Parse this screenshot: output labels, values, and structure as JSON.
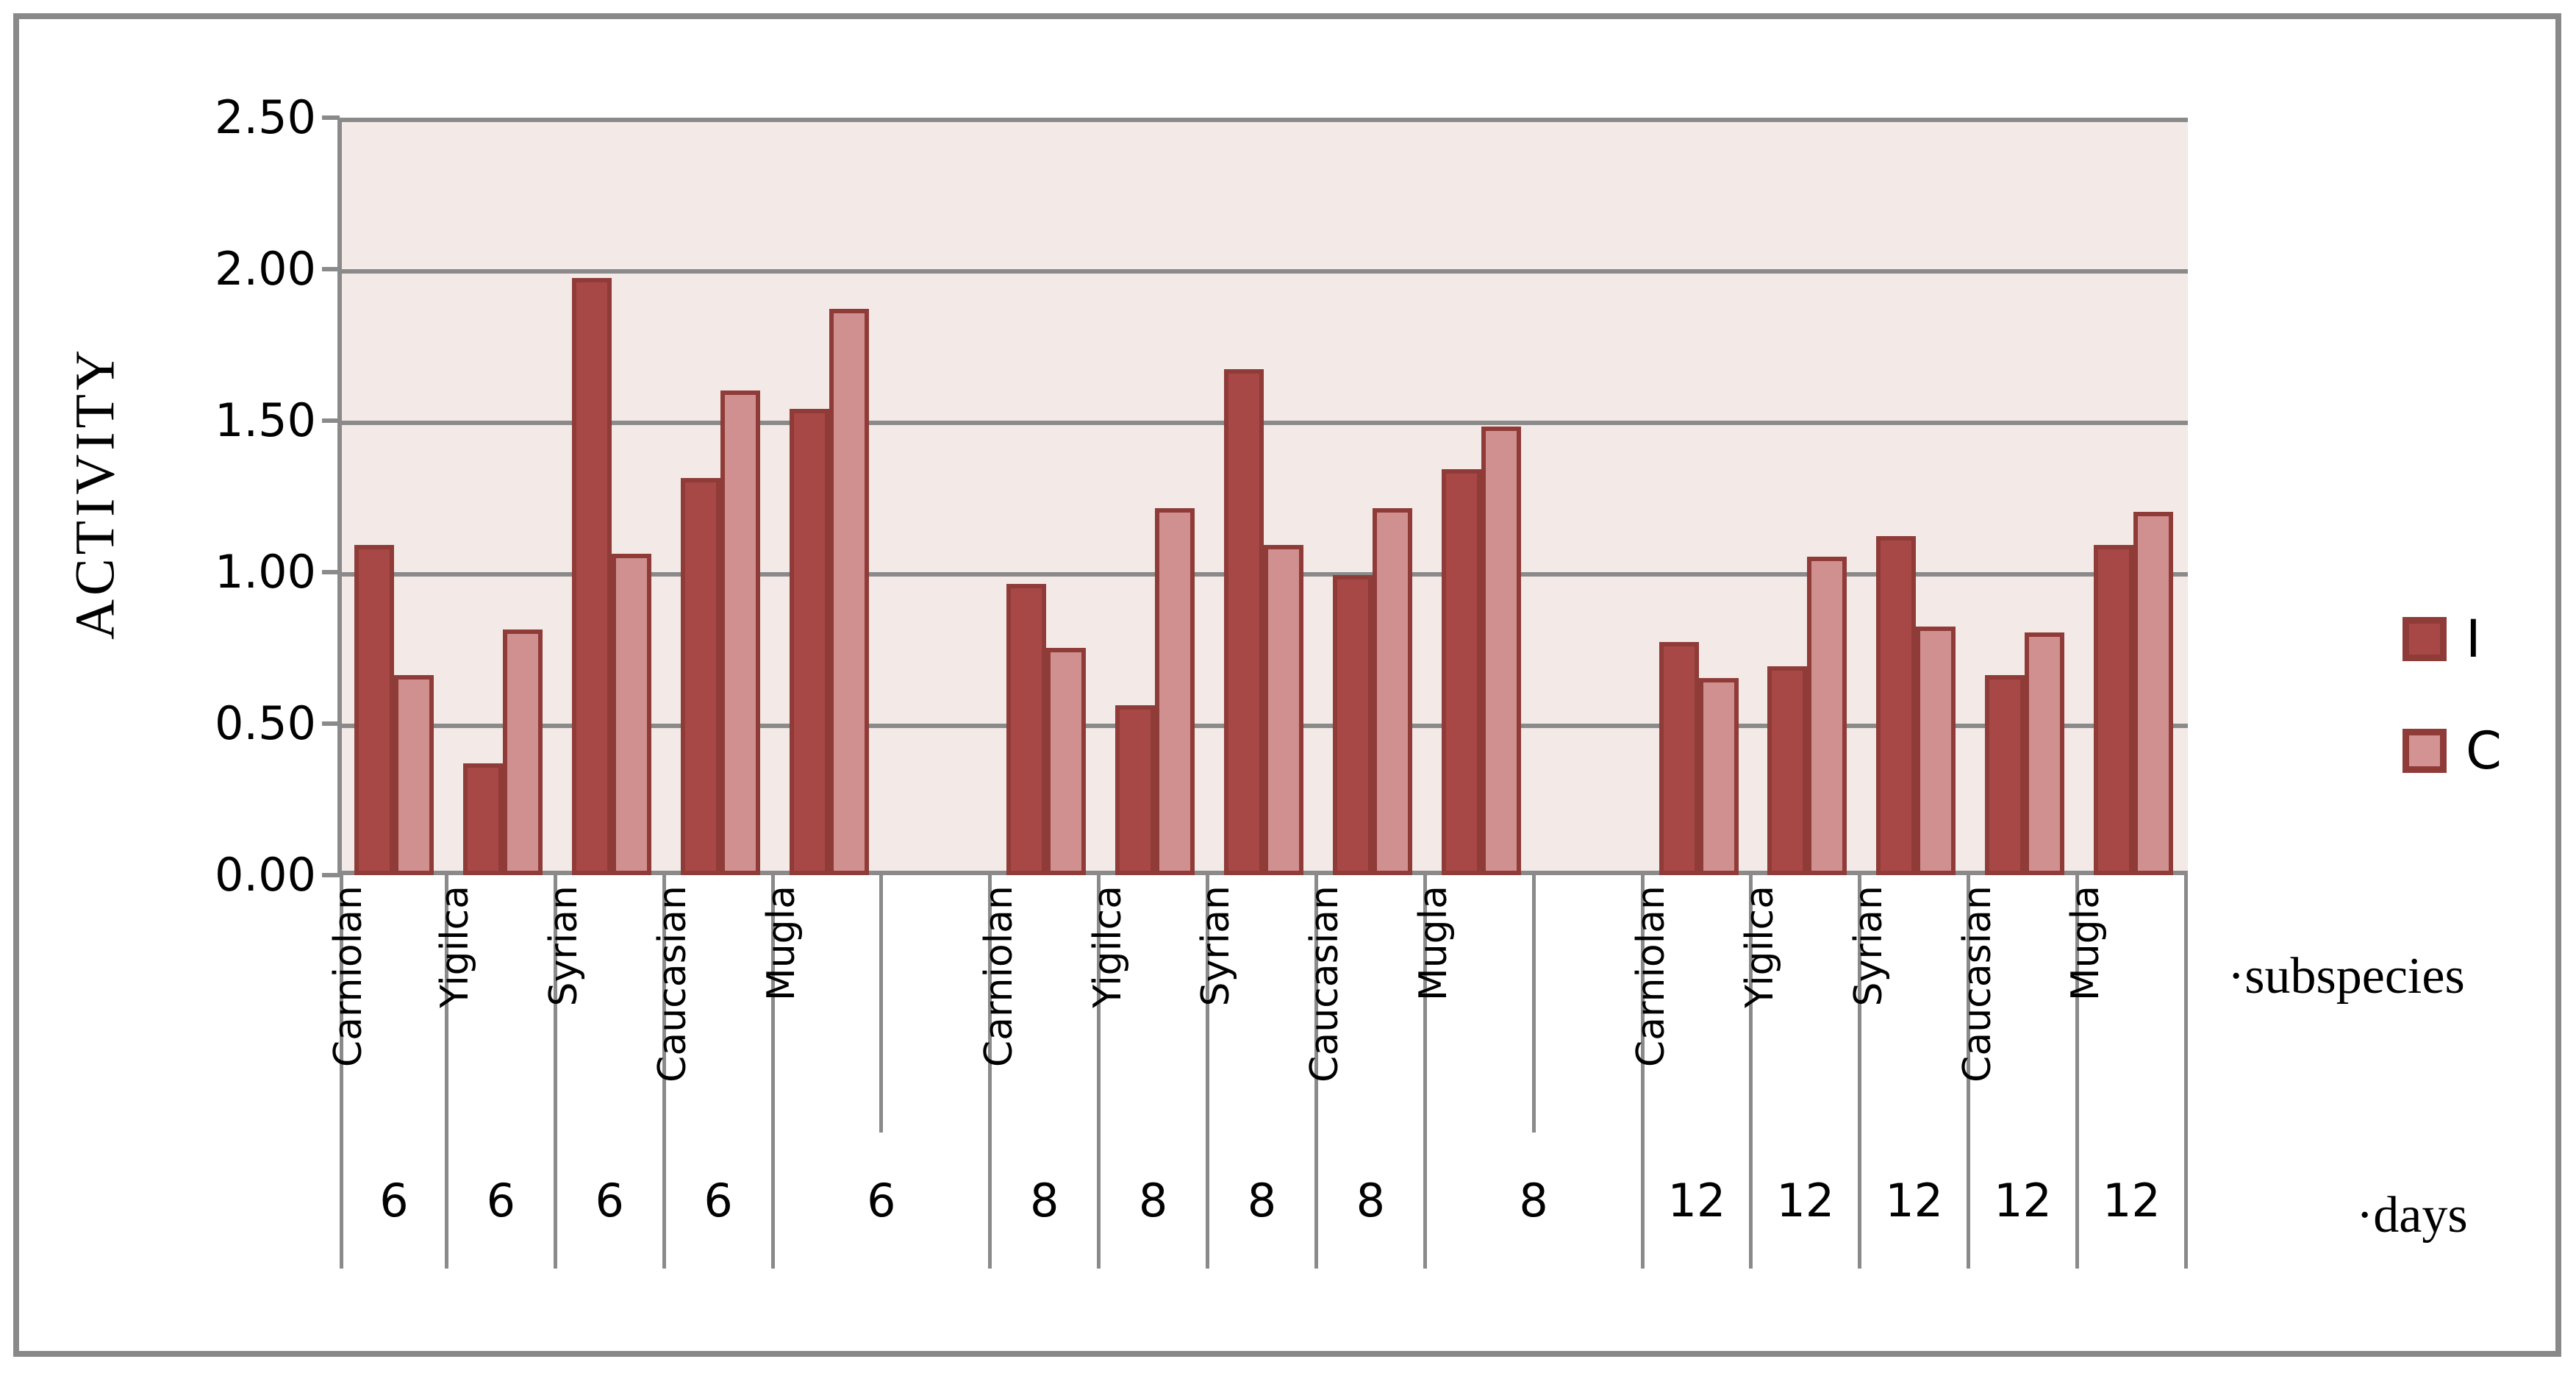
{
  "chart_data": {
    "type": "bar",
    "title": "",
    "ylabel": "ACTIVITY",
    "ylim": [
      0,
      2.5
    ],
    "ytick_step": 0.5,
    "ytick_labels": [
      "2.50",
      "2.00",
      "1.50",
      "1.00",
      "0.50",
      "0.00"
    ],
    "grid": true,
    "legend_position": "right",
    "series_names": [
      "I",
      "C"
    ],
    "x_level_1_name": "subspecies",
    "x_level_2_name": "days",
    "groups": [
      {
        "days": "6",
        "categories": [
          "Carniolan",
          "Yigilca",
          "Syrian",
          "Caucasian",
          "Mugla"
        ],
        "series": [
          {
            "name": "I",
            "values": [
              1.09,
              0.37,
              1.97,
              1.31,
              1.54
            ]
          },
          {
            "name": "C",
            "values": [
              0.66,
              0.81,
              1.06,
              1.6,
              1.87
            ]
          }
        ]
      },
      {
        "days": "8",
        "categories": [
          "Carniolan",
          "Yigilca",
          "Syrian",
          "Caucasian",
          "Mugla"
        ],
        "series": [
          {
            "name": "I",
            "values": [
              0.96,
              0.56,
              1.67,
              0.99,
              1.34
            ]
          },
          {
            "name": "C",
            "values": [
              0.75,
              1.21,
              1.09,
              1.21,
              1.48
            ]
          }
        ]
      },
      {
        "days": "12",
        "categories": [
          "Carniolan",
          "Yigilca",
          "Syrian",
          "Caucasian",
          "Mugla"
        ],
        "series": [
          {
            "name": "I",
            "values": [
              0.77,
              0.69,
              1.12,
              0.66,
              1.09
            ]
          },
          {
            "name": "C",
            "values": [
              0.65,
              1.05,
              0.82,
              0.8,
              1.2
            ]
          }
        ]
      }
    ]
  },
  "legend": {
    "items": [
      {
        "label": "I",
        "color": "#A84846"
      },
      {
        "label": "C",
        "color": "#D29392"
      }
    ]
  },
  "axis_notes": {
    "subspecies": "·subspecies",
    "days": "·days"
  },
  "colors": {
    "bar_i_fill": "#A84846",
    "bar_c_fill": "#D09090",
    "bar_stroke": "#8F3B38",
    "plot_background": "#F3E9E7",
    "gridline": "#8A8A8A",
    "figure_border": "#898989",
    "text": "#000000"
  }
}
